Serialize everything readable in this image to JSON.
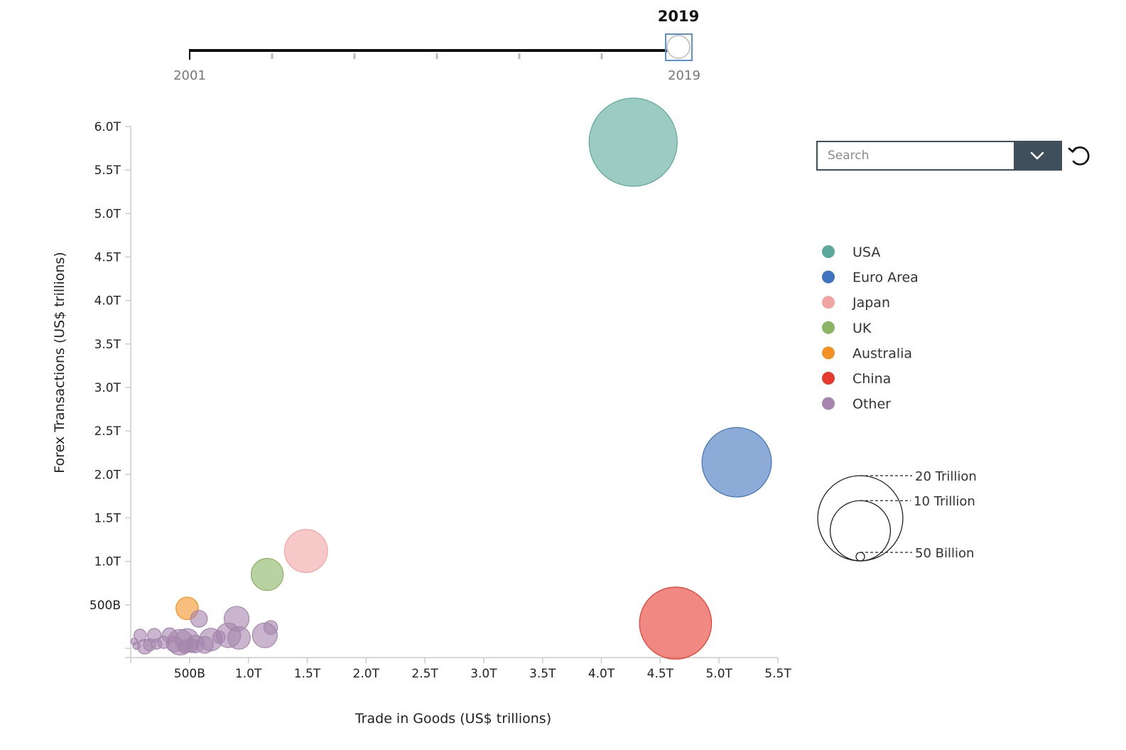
{
  "slider": {
    "start_label": "2001",
    "end_label": "2019",
    "current_label": "2019",
    "start": 2001,
    "end": 2019,
    "value": 2019
  },
  "search": {
    "placeholder": "Search"
  },
  "icons": {
    "dropdown": "chevron-down-icon",
    "reset": "reset-icon"
  },
  "legend": [
    {
      "name": "USA",
      "color": "#5aa99a"
    },
    {
      "name": "Euro Area",
      "color": "#3f73bd"
    },
    {
      "name": "Japan",
      "color": "#f2a3a4"
    },
    {
      "name": "UK",
      "color": "#8bb464"
    },
    {
      "name": "Australia",
      "color": "#f39224"
    },
    {
      "name": "China",
      "color": "#e63a2e"
    },
    {
      "name": "Other",
      "color": "#a585ad"
    }
  ],
  "size_legend": [
    {
      "label": "20 Trillion",
      "value": 20000
    },
    {
      "label": "10 Trillion",
      "value": 10000
    },
    {
      "label": "50 Billion",
      "value": 50
    }
  ],
  "chart_data": {
    "type": "scatter",
    "xlabel": "Trade in Goods (US$ trillions)",
    "ylabel": "Forex Transactions (US$ trillions)",
    "xlim": [
      0,
      5.5
    ],
    "ylim": [
      0,
      6.0
    ],
    "x_ticks": [
      {
        "v": 0.5,
        "label": "500B"
      },
      {
        "v": 1.0,
        "label": "1.0T"
      },
      {
        "v": 1.5,
        "label": "1.5T"
      },
      {
        "v": 2.0,
        "label": "2.0T"
      },
      {
        "v": 2.5,
        "label": "2.5T"
      },
      {
        "v": 3.0,
        "label": "3.0T"
      },
      {
        "v": 3.5,
        "label": "3.5T"
      },
      {
        "v": 4.0,
        "label": "4.0T"
      },
      {
        "v": 4.5,
        "label": "4.5T"
      },
      {
        "v": 5.0,
        "label": "5.0T"
      },
      {
        "v": 5.5,
        "label": "5.5T"
      }
    ],
    "y_ticks": [
      {
        "v": 0.5,
        "label": "500B"
      },
      {
        "v": 1.0,
        "label": "1.0T"
      },
      {
        "v": 1.5,
        "label": "1.5T"
      },
      {
        "v": 2.0,
        "label": "2.0T"
      },
      {
        "v": 2.5,
        "label": "2.5T"
      },
      {
        "v": 3.0,
        "label": "3.0T"
      },
      {
        "v": 3.5,
        "label": "3.5T"
      },
      {
        "v": 4.0,
        "label": "4.0T"
      },
      {
        "v": 4.5,
        "label": "4.5T"
      },
      {
        "v": 5.0,
        "label": "5.0T"
      },
      {
        "v": 5.5,
        "label": "5.5T"
      },
      {
        "v": 6.0,
        "label": "6.0T"
      }
    ],
    "grid": false,
    "points": [
      {
        "group": "USA",
        "x": 4.27,
        "y": 5.82,
        "size": 21400
      },
      {
        "group": "Euro Area",
        "x": 5.15,
        "y": 2.14,
        "size": 13300
      },
      {
        "group": "China",
        "x": 4.63,
        "y": 0.29,
        "size": 14300
      },
      {
        "group": "Japan",
        "x": 1.49,
        "y": 1.12,
        "size": 5100
      },
      {
        "group": "UK",
        "x": 1.16,
        "y": 0.85,
        "size": 2830
      },
      {
        "group": "Australia",
        "x": 0.48,
        "y": 0.46,
        "size": 1390
      },
      {
        "group": "Other",
        "x": 0.9,
        "y": 0.34,
        "size": 1700
      },
      {
        "group": "Other",
        "x": 0.58,
        "y": 0.34,
        "size": 780
      },
      {
        "group": "Other",
        "x": 1.19,
        "y": 0.24,
        "size": 520
      },
      {
        "group": "Other",
        "x": 1.14,
        "y": 0.15,
        "size": 1700
      },
      {
        "group": "Other",
        "x": 0.83,
        "y": 0.15,
        "size": 1650
      },
      {
        "group": "Other",
        "x": 0.92,
        "y": 0.12,
        "size": 1400
      },
      {
        "group": "Other",
        "x": 0.68,
        "y": 0.1,
        "size": 1400
      },
      {
        "group": "Other",
        "x": 0.42,
        "y": 0.07,
        "size": 1800
      },
      {
        "group": "Other",
        "x": 0.48,
        "y": 0.09,
        "size": 1550
      },
      {
        "group": "Other",
        "x": 0.55,
        "y": 0.05,
        "size": 850
      },
      {
        "group": "Other",
        "x": 0.63,
        "y": 0.04,
        "size": 780
      },
      {
        "group": "Other",
        "x": 0.33,
        "y": 0.15,
        "size": 600
      },
      {
        "group": "Other",
        "x": 0.2,
        "y": 0.15,
        "size": 520
      },
      {
        "group": "Other",
        "x": 0.08,
        "y": 0.15,
        "size": 420
      },
      {
        "group": "Other",
        "x": 0.28,
        "y": 0.07,
        "size": 420
      },
      {
        "group": "Other",
        "x": 0.37,
        "y": 0.05,
        "size": 700
      },
      {
        "group": "Other",
        "x": 0.12,
        "y": 0.02,
        "size": 600
      },
      {
        "group": "Other",
        "x": 0.16,
        "y": 0.04,
        "size": 420
      },
      {
        "group": "Other",
        "x": 0.05,
        "y": 0.03,
        "size": 150
      },
      {
        "group": "Other",
        "x": 0.22,
        "y": 0.05,
        "size": 300
      },
      {
        "group": "Other",
        "x": 0.03,
        "y": 0.08,
        "size": 120
      },
      {
        "group": "Other",
        "x": 0.75,
        "y": 0.13,
        "size": 430
      },
      {
        "group": "Other",
        "x": 0.46,
        "y": 0.02,
        "size": 500
      },
      {
        "group": "Other",
        "x": 0.52,
        "y": 0.03,
        "size": 500
      }
    ]
  }
}
